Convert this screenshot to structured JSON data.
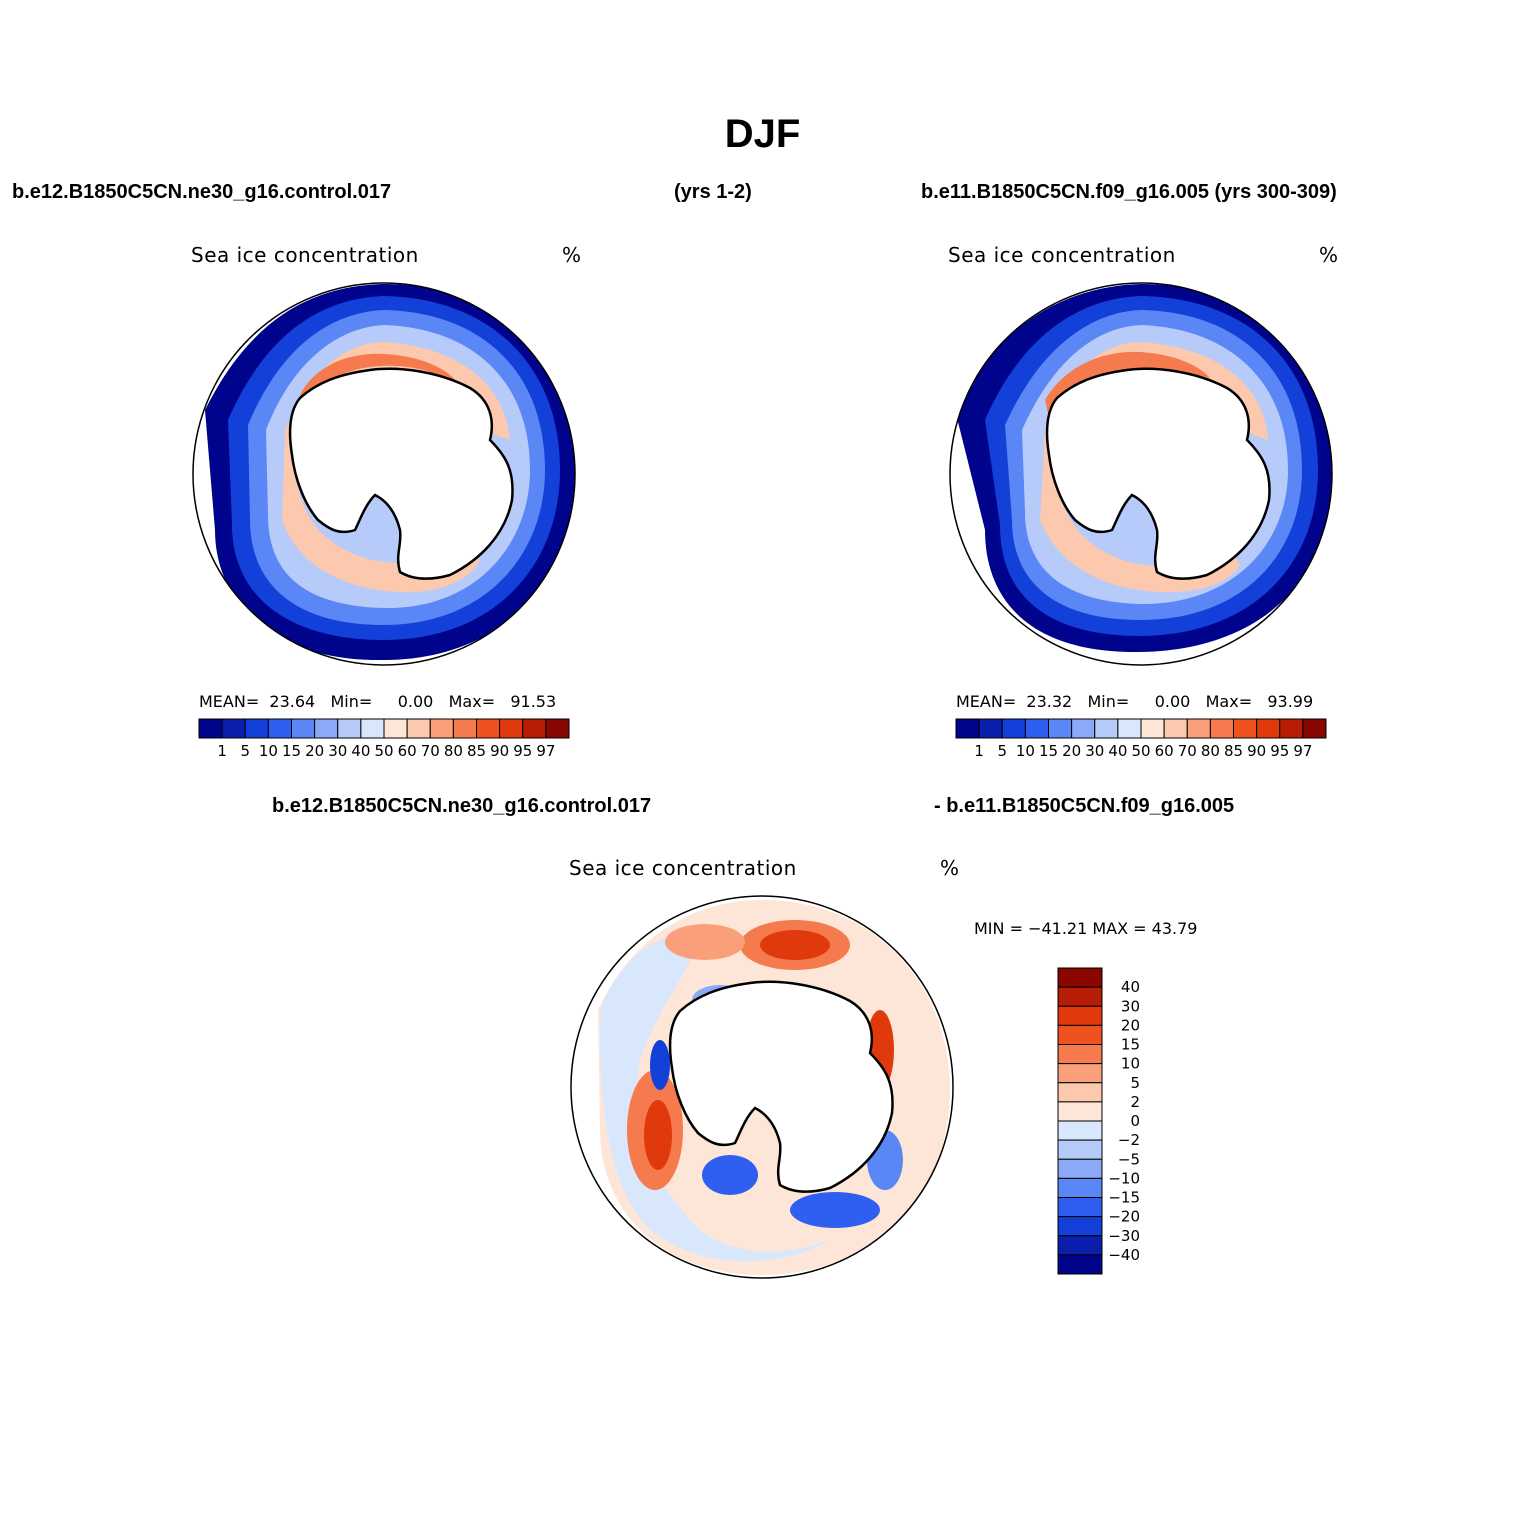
{
  "page_title": "DJF",
  "headers": {
    "top_left_run": "b.e12.B1850C5CN.ne30_g16.control.017",
    "top_left_years": "(yrs 1-2)",
    "top_right_run": "b.e11.B1850C5CN.f09_g16.005 (yrs 300-309)",
    "bottom_left_run": "b.e12.B1850C5CN.ne30_g16.control.017",
    "bottom_right_run": "- b.e11.B1850C5CN.f09_g16.005"
  },
  "panels": [
    {
      "id": "panel-left",
      "variable": "Sea ice concentration",
      "units": "%",
      "stats": {
        "mean_label": "MEAN=",
        "mean": "23.64",
        "min_label": "Min=",
        "min": "0.00",
        "max_label": "Max=",
        "max": "91.53"
      }
    },
    {
      "id": "panel-right",
      "variable": "Sea ice concentration",
      "units": "%",
      "stats": {
        "mean_label": "MEAN=",
        "mean": "23.32",
        "min_label": "Min=",
        "min": "0.00",
        "max_label": "Max=",
        "max": "93.99"
      }
    },
    {
      "id": "panel-diff",
      "variable": "Sea ice concentration",
      "units": "%",
      "stats": {
        "text": "MIN = −41.21  MAX =   43.79"
      }
    }
  ],
  "colorbar_abs": {
    "colors": [
      "#00048c",
      "#0a1fae",
      "#1340d8",
      "#2f5ff0",
      "#5a86f6",
      "#8aaaf7",
      "#b6cbf9",
      "#d8e7fb",
      "#fde6d7",
      "#fcc8ae",
      "#f9a07a",
      "#f57a4e",
      "#f0521f",
      "#e03a0c",
      "#b71c04",
      "#890700"
    ],
    "labels": [
      "1",
      "5",
      "10",
      "15",
      "20",
      "30",
      "40",
      "50",
      "60",
      "70",
      "80",
      "85",
      "90",
      "95",
      "97"
    ]
  },
  "colorbar_diff": {
    "colors": [
      "#890700",
      "#b71c04",
      "#e03a0c",
      "#f0521f",
      "#f57a4e",
      "#f9a07a",
      "#fcc8ae",
      "#fde6d7",
      "#d8e7fb",
      "#b6cbf9",
      "#8aaaf7",
      "#5a86f6",
      "#2f5ff0",
      "#1340d8",
      "#0a1fae",
      "#00048c"
    ],
    "labels": [
      "40",
      "30",
      "20",
      "15",
      "10",
      "5",
      "2",
      "0",
      "−2",
      "−5",
      "−10",
      "−15",
      "−20",
      "−30",
      "−40"
    ]
  }
}
